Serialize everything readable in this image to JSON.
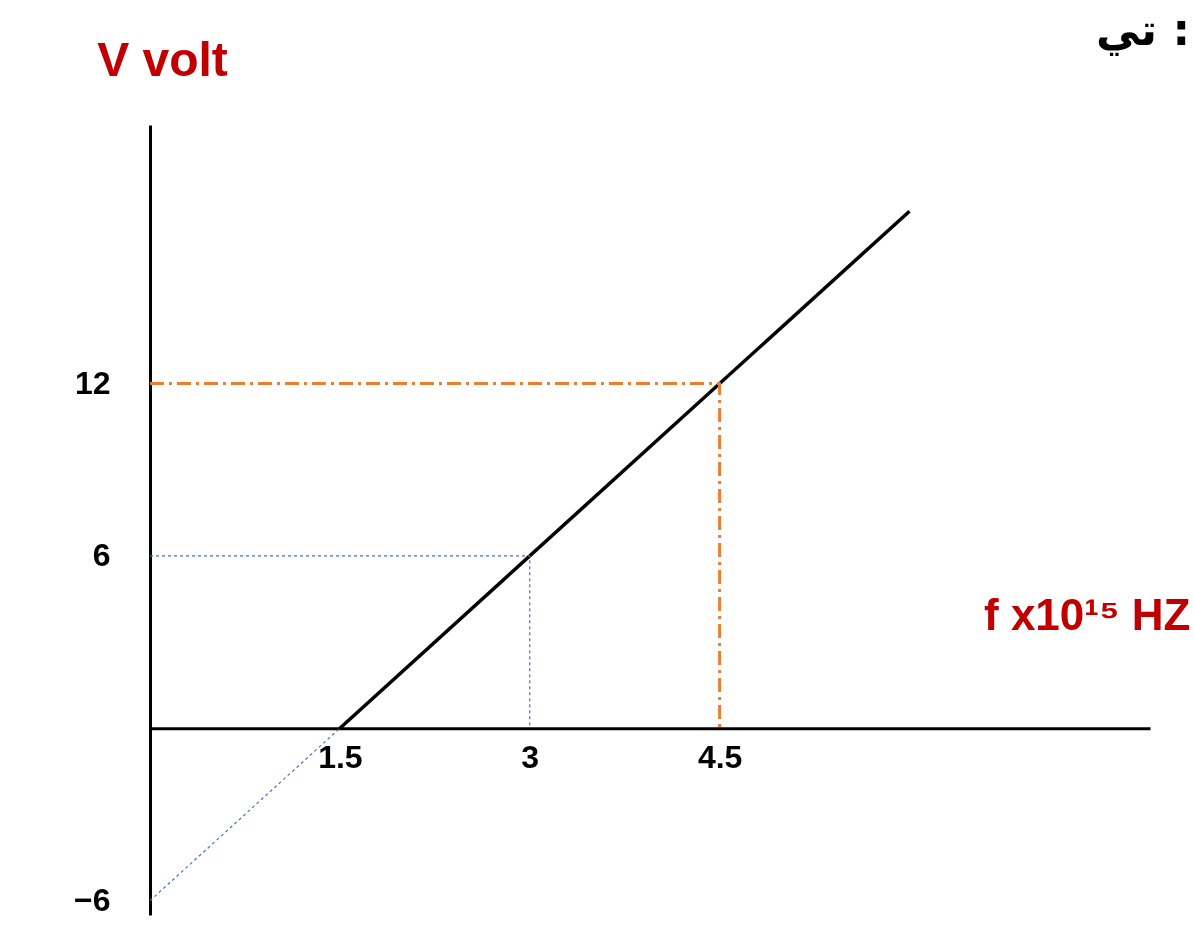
{
  "chart_data": {
    "type": "line",
    "title": "تي :",
    "xlabel": "f x10¹⁵ HZ",
    "ylabel": "V volt",
    "series": [
      {
        "color": "#000000",
        "line_style": "solid",
        "x": [
          1.5,
          6
        ],
        "values": [
          0,
          18
        ]
      },
      {
        "color": "#4472c4",
        "line_style": "dotted",
        "x": [
          0,
          1.5
        ],
        "values": [
          -6,
          0
        ]
      },
      {
        "color": "#4472c4",
        "line_style": "dotted",
        "x": [
          0,
          3,
          3
        ],
        "values": [
          6,
          6,
          0
        ]
      },
      {
        "color": "#ed7d31",
        "line_style": "dashed",
        "x": [
          0,
          4.5,
          4.5
        ],
        "values": [
          12,
          12,
          0
        ]
      }
    ],
    "xlim": [
      0,
      7.9
    ],
    "ylim": [
      -6.5,
      21
    ],
    "xticks": [
      1.5,
      3,
      4.5
    ],
    "yticks": [
      -6,
      6,
      12
    ],
    "grid": false,
    "legend": false,
    "marker": "none"
  }
}
